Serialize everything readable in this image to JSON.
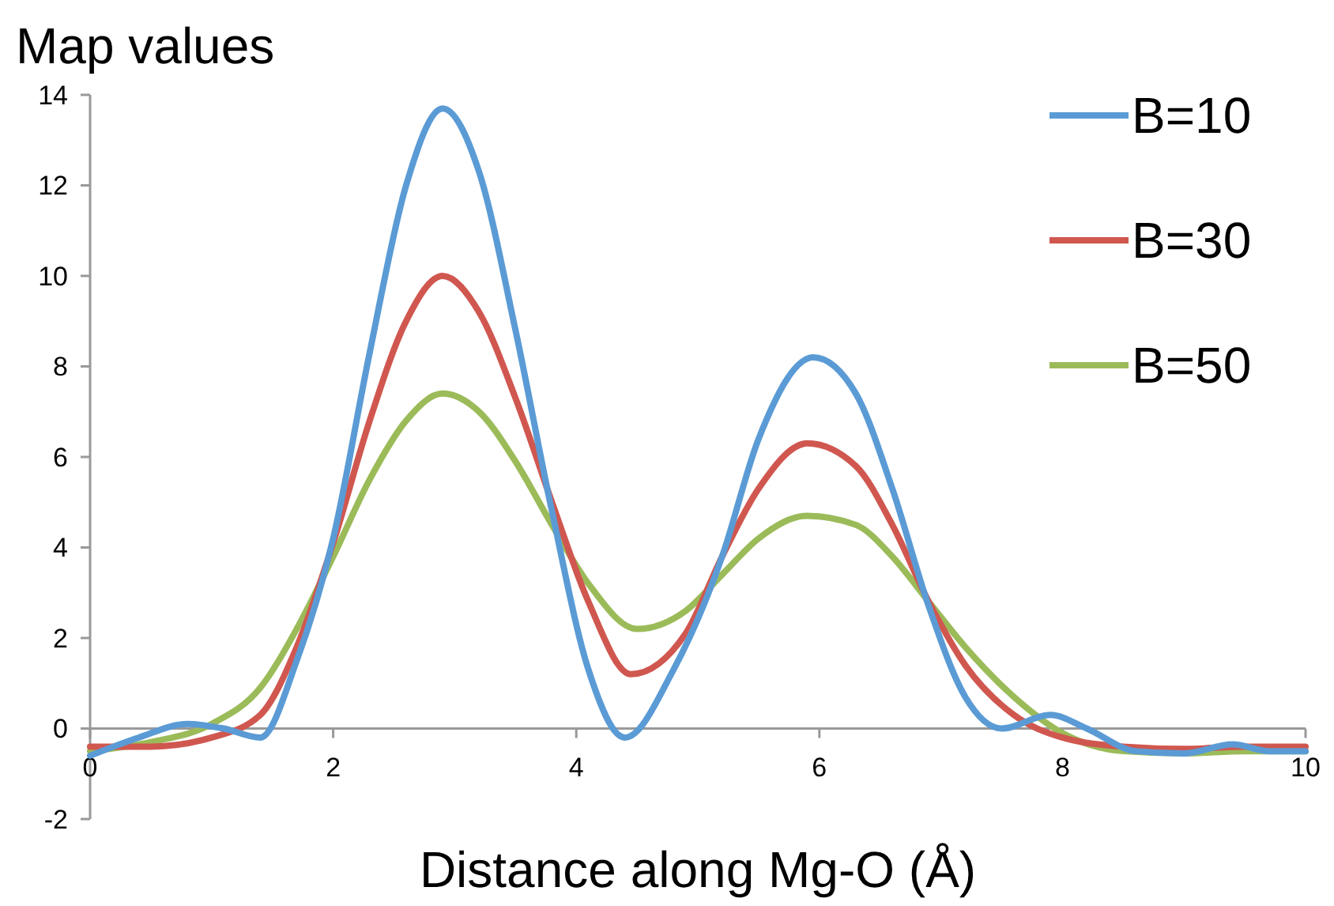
{
  "chart_data": {
    "type": "line",
    "ylabel": "Map values",
    "xlabel": "Distance along Mg-O (Å)",
    "xlim": [
      0,
      10
    ],
    "xticks": [
      0,
      2,
      4,
      6,
      8,
      10
    ],
    "ylim": [
      -2,
      14
    ],
    "yticks": [
      -2,
      0,
      2,
      4,
      6,
      8,
      10,
      12,
      14
    ],
    "grid": false,
    "legend": "top right",
    "marker": "none",
    "line_style": "solid",
    "series": [
      {
        "name": "B=10",
        "color": "#5b9bd5",
        "x": [
          0,
          0.4,
          0.8,
          1.1,
          1.4,
          1.7,
          2.0,
          2.3,
          2.6,
          2.9,
          3.2,
          3.5,
          3.8,
          4.1,
          4.4,
          4.8,
          5.2,
          5.5,
          5.95,
          6.3,
          6.6,
          6.9,
          7.2,
          7.5,
          7.9,
          8.2,
          8.6,
          9.0,
          9.4,
          9.7,
          10
        ],
        "values": [
          -0.6,
          -0.2,
          0.1,
          0,
          -0.2,
          1.5,
          4.2,
          8.3,
          12,
          13.7,
          12.3,
          8.8,
          4.8,
          1.3,
          -0.2,
          1.3,
          3.8,
          6.4,
          8.2,
          7.4,
          5.3,
          2.7,
          0.7,
          0,
          0.3,
          0,
          -0.5,
          -0.55,
          -0.35,
          -0.5,
          -0.5
        ]
      },
      {
        "name": "B=30",
        "color": "#d0574f",
        "x": [
          0,
          0.5,
          1,
          1.4,
          1.7,
          2,
          2.3,
          2.6,
          2.9,
          3.2,
          3.5,
          3.8,
          4.1,
          4.45,
          4.9,
          5.2,
          5.5,
          5.9,
          6.3,
          6.6,
          6.9,
          7.2,
          7.6,
          8,
          8.5,
          9,
          9.5,
          10
        ],
        "values": [
          -0.4,
          -0.4,
          -0.2,
          0.3,
          1.8,
          4.1,
          6.8,
          9,
          10,
          9.2,
          7.3,
          5,
          2.8,
          1.2,
          2.1,
          3.8,
          5.3,
          6.3,
          5.8,
          4.5,
          2.8,
          1.4,
          0.3,
          -0.2,
          -0.4,
          -0.45,
          -0.4,
          -0.4
        ]
      },
      {
        "name": "B=50",
        "color": "#9bbb59",
        "x": [
          0,
          0.5,
          1,
          1.4,
          1.7,
          2,
          2.3,
          2.6,
          2.9,
          3.2,
          3.5,
          3.8,
          4.1,
          4.5,
          4.9,
          5.2,
          5.5,
          5.9,
          6.3,
          6.6,
          6.9,
          7.2,
          7.6,
          8,
          8.5,
          9,
          9.5,
          10
        ],
        "values": [
          -0.5,
          -0.3,
          0.1,
          0.9,
          2.2,
          3.8,
          5.5,
          6.8,
          7.4,
          7.0,
          5.9,
          4.5,
          3.2,
          2.2,
          2.6,
          3.4,
          4.2,
          4.7,
          4.5,
          3.8,
          2.8,
          1.8,
          0.7,
          -0.1,
          -0.5,
          -0.55,
          -0.5,
          -0.5
        ]
      }
    ]
  }
}
